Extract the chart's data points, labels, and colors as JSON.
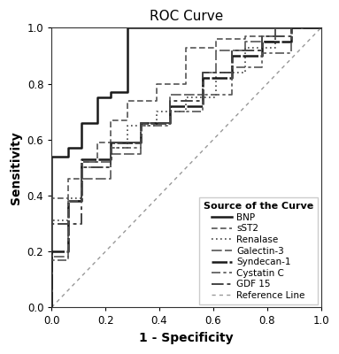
{
  "title": "ROC Curve",
  "xlabel": "1 - Specificity",
  "ylabel": "Sensitivity",
  "xlim": [
    0.0,
    1.0
  ],
  "ylim": [
    0.0,
    1.0
  ],
  "xticks": [
    0.0,
    0.2,
    0.4,
    0.6,
    0.8,
    1.0
  ],
  "yticks": [
    0.0,
    0.2,
    0.4,
    0.6,
    0.8,
    1.0
  ],
  "legend_title": "Source of the Curve",
  "curves": {
    "BNP": {
      "x": [
        0.0,
        0.0,
        0.06,
        0.06,
        0.11,
        0.11,
        0.17,
        0.17,
        0.22,
        0.22,
        0.28,
        0.28,
        0.5,
        0.5,
        1.0
      ],
      "y": [
        0.0,
        0.54,
        0.54,
        0.57,
        0.57,
        0.66,
        0.66,
        0.75,
        0.75,
        0.77,
        0.77,
        1.0,
        1.0,
        1.0,
        1.0
      ]
    },
    "sST2": {
      "x": [
        0.0,
        0.0,
        0.06,
        0.06,
        0.11,
        0.11,
        0.17,
        0.17,
        0.22,
        0.22,
        0.28,
        0.28,
        0.39,
        0.39,
        0.5,
        0.5,
        0.61,
        0.61,
        0.72,
        0.72,
        0.83,
        0.83,
        1.0
      ],
      "y": [
        0.0,
        0.39,
        0.39,
        0.46,
        0.46,
        0.52,
        0.52,
        0.59,
        0.59,
        0.67,
        0.67,
        0.74,
        0.74,
        0.8,
        0.8,
        0.93,
        0.93,
        0.96,
        0.96,
        0.97,
        0.97,
        1.0,
        1.0
      ]
    },
    "Renalase": {
      "x": [
        0.0,
        0.0,
        0.06,
        0.06,
        0.11,
        0.11,
        0.22,
        0.22,
        0.28,
        0.28,
        0.39,
        0.39,
        0.5,
        0.5,
        0.61,
        0.61,
        0.72,
        0.72,
        0.83,
        0.83,
        1.0
      ],
      "y": [
        0.0,
        0.31,
        0.31,
        0.39,
        0.39,
        0.5,
        0.5,
        0.57,
        0.57,
        0.65,
        0.65,
        0.7,
        0.7,
        0.75,
        0.75,
        0.84,
        0.84,
        0.93,
        0.93,
        1.0,
        1.0
      ]
    },
    "Galectin-3": {
      "x": [
        0.0,
        0.0,
        0.06,
        0.06,
        0.11,
        0.11,
        0.22,
        0.22,
        0.33,
        0.33,
        0.44,
        0.44,
        0.56,
        0.56,
        0.61,
        0.61,
        0.72,
        0.72,
        0.83,
        0.83,
        1.0
      ],
      "y": [
        0.0,
        0.18,
        0.18,
        0.38,
        0.38,
        0.46,
        0.46,
        0.55,
        0.55,
        0.66,
        0.66,
        0.76,
        0.76,
        0.84,
        0.84,
        0.92,
        0.92,
        0.95,
        0.95,
        1.0,
        1.0
      ]
    },
    "Syndecan-1": {
      "x": [
        0.0,
        0.0,
        0.06,
        0.06,
        0.11,
        0.11,
        0.22,
        0.22,
        0.33,
        0.33,
        0.44,
        0.44,
        0.56,
        0.56,
        0.67,
        0.67,
        0.78,
        0.78,
        0.89,
        0.89,
        1.0
      ],
      "y": [
        0.0,
        0.2,
        0.2,
        0.38,
        0.38,
        0.53,
        0.53,
        0.59,
        0.59,
        0.66,
        0.66,
        0.72,
        0.72,
        0.82,
        0.82,
        0.9,
        0.9,
        0.95,
        0.95,
        1.0,
        1.0
      ]
    },
    "Cystatin C": {
      "x": [
        0.0,
        0.0,
        0.06,
        0.06,
        0.11,
        0.11,
        0.22,
        0.22,
        0.33,
        0.33,
        0.44,
        0.44,
        0.56,
        0.56,
        0.67,
        0.67,
        0.78,
        0.78,
        0.89,
        0.89,
        1.0
      ],
      "y": [
        0.0,
        0.17,
        0.17,
        0.38,
        0.38,
        0.52,
        0.52,
        0.57,
        0.57,
        0.65,
        0.65,
        0.7,
        0.7,
        0.76,
        0.76,
        0.86,
        0.86,
        0.91,
        0.91,
        1.0,
        1.0
      ]
    },
    "GDF 15": {
      "x": [
        0.0,
        0.0,
        0.11,
        0.11,
        0.22,
        0.22,
        0.33,
        0.33,
        0.44,
        0.44,
        0.56,
        0.56,
        0.67,
        0.67,
        0.78,
        0.78,
        0.89,
        0.89,
        1.0
      ],
      "y": [
        0.0,
        0.3,
        0.3,
        0.5,
        0.5,
        0.59,
        0.59,
        0.66,
        0.66,
        0.74,
        0.74,
        0.84,
        0.84,
        0.92,
        0.92,
        0.97,
        0.97,
        1.0,
        1.0
      ]
    }
  },
  "line_styles": {
    "BNP": {
      "ls": "solid",
      "lw": 1.8,
      "color": "#1a1a1a"
    },
    "sST2": {
      "ls": [
        4,
        2,
        4,
        2
      ],
      "lw": 1.2,
      "color": "#555555"
    },
    "Renalase": {
      "ls": [
        1,
        2,
        1,
        2
      ],
      "lw": 1.2,
      "color": "#444444"
    },
    "Galectin-3": {
      "ls": [
        7,
        2,
        7,
        2
      ],
      "lw": 1.2,
      "color": "#555555"
    },
    "Syndecan-1": {
      "ls": [
        7,
        1,
        7,
        1
      ],
      "lw": 1.8,
      "color": "#1a1a1a"
    },
    "Cystatin C": {
      "ls": [
        6,
        2,
        2,
        2
      ],
      "lw": 1.2,
      "color": "#555555"
    },
    "GDF 15": {
      "ls": [
        7,
        2,
        2,
        2
      ],
      "lw": 1.4,
      "color": "#444444"
    }
  },
  "reference_line": {
    "x": [
      0.0,
      1.0
    ],
    "y": [
      0.0,
      1.0
    ],
    "ls": [
      3,
      3
    ],
    "color": "#999999",
    "linewidth": 1.0
  },
  "background_color": "#ffffff",
  "title_fontsize": 11,
  "label_fontsize": 10,
  "tick_fontsize": 8.5,
  "legend_fontsize": 7.5,
  "legend_title_fontsize": 8.0
}
